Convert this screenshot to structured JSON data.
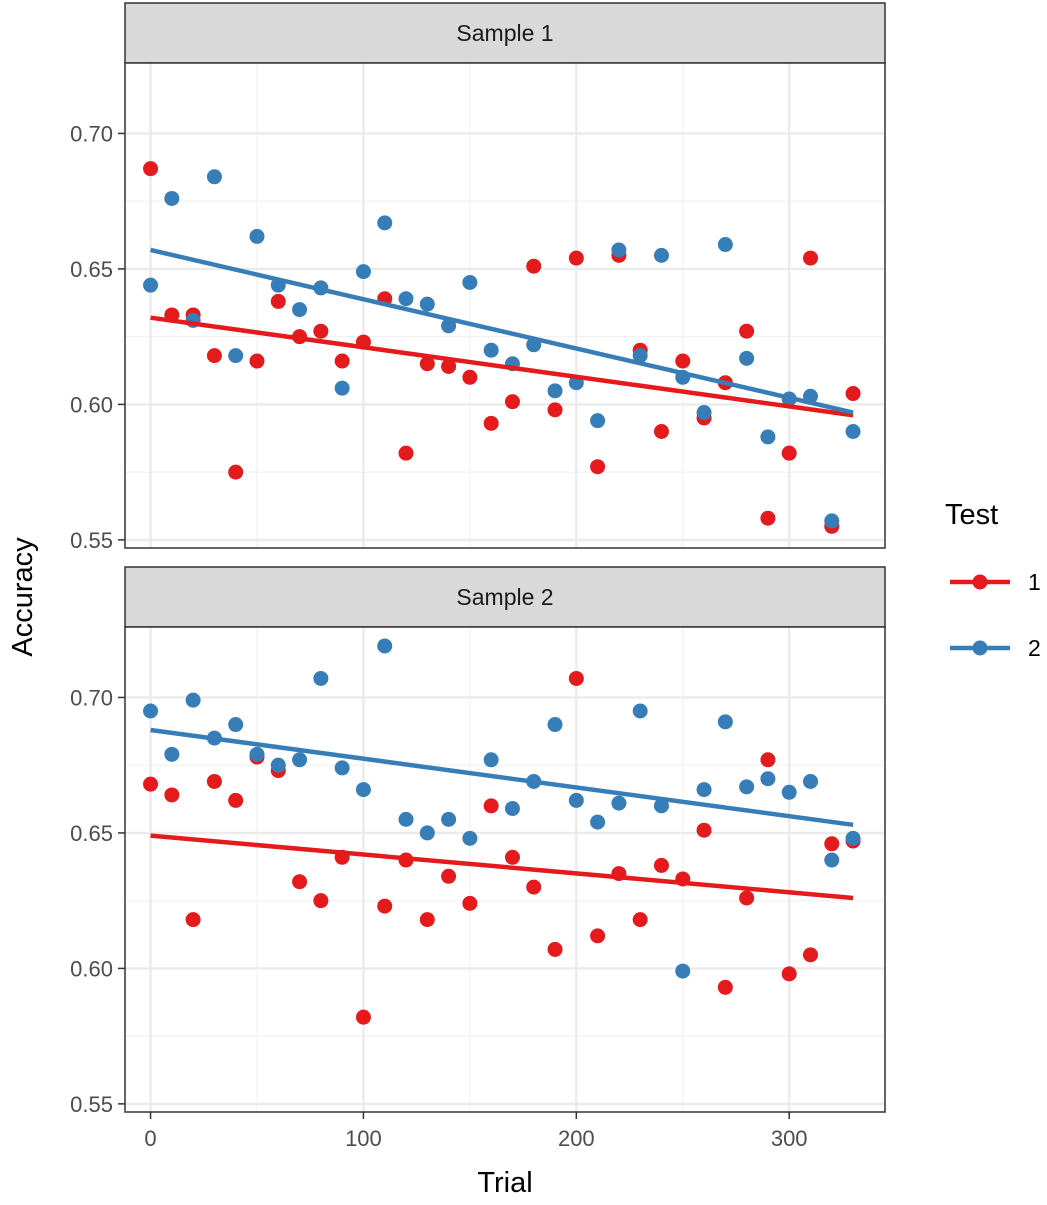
{
  "chart_data": {
    "type": "scatter",
    "xlabel": "Trial",
    "ylabel": "Accuracy",
    "xlim": [
      -12,
      345
    ],
    "ylim": [
      0.547,
      0.726
    ],
    "x_ticks": [
      0,
      100,
      200,
      300
    ],
    "x_tick_labels": [
      "0",
      "100",
      "200",
      "300"
    ],
    "y_ticks": [
      0.55,
      0.6,
      0.65,
      0.7
    ],
    "y_tick_labels": [
      "0.55",
      "0.60",
      "0.65",
      "0.70"
    ],
    "grid": true,
    "legend": {
      "title": "Test",
      "placement": "right",
      "entries": [
        {
          "label": "1",
          "color": "#e41a1c"
        },
        {
          "label": "2",
          "color": "#377eb8"
        }
      ]
    },
    "panels": [
      {
        "strip": "Sample 1",
        "series": [
          {
            "name": "1",
            "color": "#e41a1c",
            "x": [
              0,
              10,
              20,
              30,
              40,
              50,
              60,
              70,
              80,
              90,
              100,
              110,
              120,
              130,
              140,
              150,
              160,
              170,
              180,
              190,
              200,
              210,
              220,
              230,
              240,
              250,
              260,
              270,
              280,
              290,
              300,
              310,
              320,
              330
            ],
            "y": [
              0.687,
              0.633,
              0.633,
              0.618,
              0.575,
              0.616,
              0.638,
              0.625,
              0.627,
              0.616,
              0.623,
              0.639,
              0.582,
              0.615,
              0.614,
              0.61,
              0.593,
              0.601,
              0.651,
              0.598,
              0.654,
              0.577,
              0.655,
              0.62,
              0.59,
              0.616,
              0.595,
              0.608,
              0.627,
              0.558,
              0.582,
              0.654,
              0.555,
              0.604
            ],
            "trend": {
              "x": [
                0,
                330
              ],
              "y": [
                0.632,
                0.596
              ]
            }
          },
          {
            "name": "2",
            "color": "#377eb8",
            "x": [
              0,
              10,
              20,
              30,
              40,
              50,
              60,
              70,
              80,
              90,
              100,
              110,
              120,
              130,
              140,
              150,
              160,
              170,
              180,
              190,
              200,
              210,
              220,
              230,
              240,
              250,
              260,
              270,
              280,
              290,
              300,
              310,
              320,
              330
            ],
            "y": [
              0.644,
              0.676,
              0.631,
              0.684,
              0.618,
              0.662,
              0.644,
              0.635,
              0.643,
              0.606,
              0.649,
              0.667,
              0.639,
              0.637,
              0.629,
              0.645,
              0.62,
              0.615,
              0.622,
              0.605,
              0.608,
              0.594,
              0.657,
              0.618,
              0.655,
              0.61,
              0.597,
              0.659,
              0.617,
              0.588,
              0.602,
              0.603,
              0.557,
              0.59
            ],
            "trend": {
              "x": [
                0,
                330
              ],
              "y": [
                0.657,
                0.597
              ]
            }
          }
        ]
      },
      {
        "strip": "Sample 2",
        "series": [
          {
            "name": "1",
            "color": "#e41a1c",
            "x": [
              0,
              10,
              20,
              30,
              40,
              50,
              60,
              70,
              80,
              90,
              100,
              110,
              120,
              130,
              140,
              150,
              160,
              170,
              180,
              190,
              200,
              210,
              220,
              230,
              240,
              250,
              260,
              270,
              280,
              290,
              300,
              310,
              320,
              330
            ],
            "y": [
              0.668,
              0.664,
              0.618,
              0.669,
              0.662,
              0.678,
              0.673,
              0.632,
              0.625,
              0.641,
              0.582,
              0.623,
              0.64,
              0.618,
              0.634,
              0.624,
              0.66,
              0.641,
              0.63,
              0.607,
              0.707,
              0.612,
              0.635,
              0.618,
              0.638,
              0.633,
              0.651,
              0.593,
              0.626,
              0.677,
              0.598,
              0.605,
              0.646,
              0.647
            ],
            "trend": {
              "x": [
                0,
                330
              ],
              "y": [
                0.649,
                0.626
              ]
            }
          },
          {
            "name": "2",
            "color": "#377eb8",
            "x": [
              0,
              10,
              20,
              30,
              40,
              50,
              60,
              70,
              80,
              90,
              100,
              110,
              120,
              130,
              140,
              150,
              160,
              170,
              180,
              190,
              200,
              210,
              220,
              230,
              240,
              250,
              260,
              270,
              280,
              290,
              300,
              310,
              320,
              330
            ],
            "y": [
              0.695,
              0.679,
              0.699,
              0.685,
              0.69,
              0.679,
              0.675,
              0.677,
              0.707,
              0.674,
              0.666,
              0.719,
              0.655,
              0.65,
              0.655,
              0.648,
              0.677,
              0.659,
              0.669,
              0.69,
              0.662,
              0.654,
              0.661,
              0.695,
              0.66,
              0.599,
              0.666,
              0.691,
              0.667,
              0.67,
              0.665,
              0.669,
              0.64,
              0.648
            ],
            "trend": {
              "x": [
                0,
                330
              ],
              "y": [
                0.688,
                0.653
              ]
            }
          }
        ]
      }
    ]
  }
}
